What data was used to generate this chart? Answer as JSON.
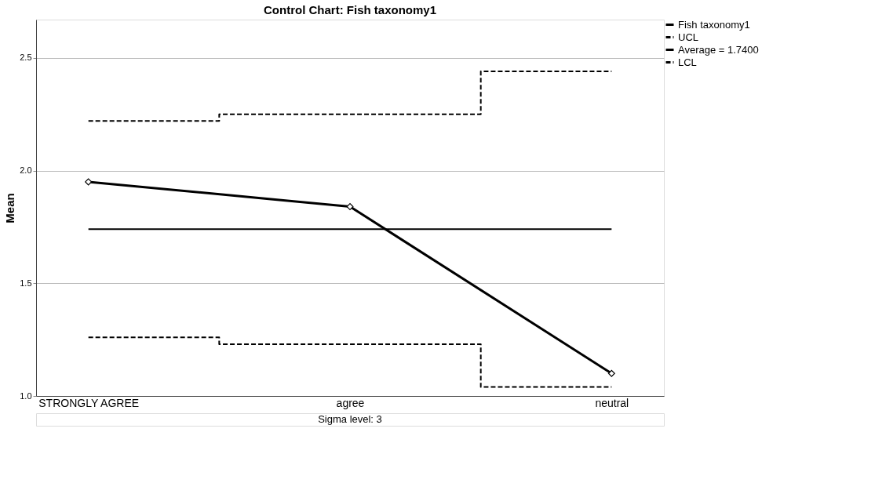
{
  "chart_data": {
    "type": "line",
    "title": "Control Chart: Fish taxonomy1",
    "ylabel": "Mean",
    "categories": [
      "STRONGLY AGREE",
      "agree",
      "neutral"
    ],
    "series": [
      {
        "name": "Fish taxonomy1",
        "color": "#000000",
        "line_style": "solid",
        "marker": "diamond",
        "values": [
          1.95,
          1.84,
          1.1
        ]
      },
      {
        "name": "UCL",
        "type": "step",
        "color": "#000000",
        "line_style": "dashed",
        "values": [
          2.22,
          2.25,
          2.44
        ]
      },
      {
        "name": "Average = 1.7400",
        "color": "#000000",
        "line_style": "solid",
        "values": [
          1.74,
          1.74,
          1.74
        ]
      },
      {
        "name": "LCL",
        "type": "step",
        "color": "#000000",
        "line_style": "dashed",
        "values": [
          1.26,
          1.23,
          1.04
        ]
      }
    ],
    "ylim": [
      1.0,
      2.67
    ],
    "yticks": [
      {
        "value": 1.0,
        "label": "1.0"
      },
      {
        "value": 1.5,
        "label": "1.5"
      },
      {
        "value": 2.0,
        "label": "2.0"
      },
      {
        "value": 2.5,
        "label": "2.5"
      }
    ],
    "grid": "y",
    "legend": "top right",
    "annotations": [
      "Sigma level:     3"
    ]
  }
}
